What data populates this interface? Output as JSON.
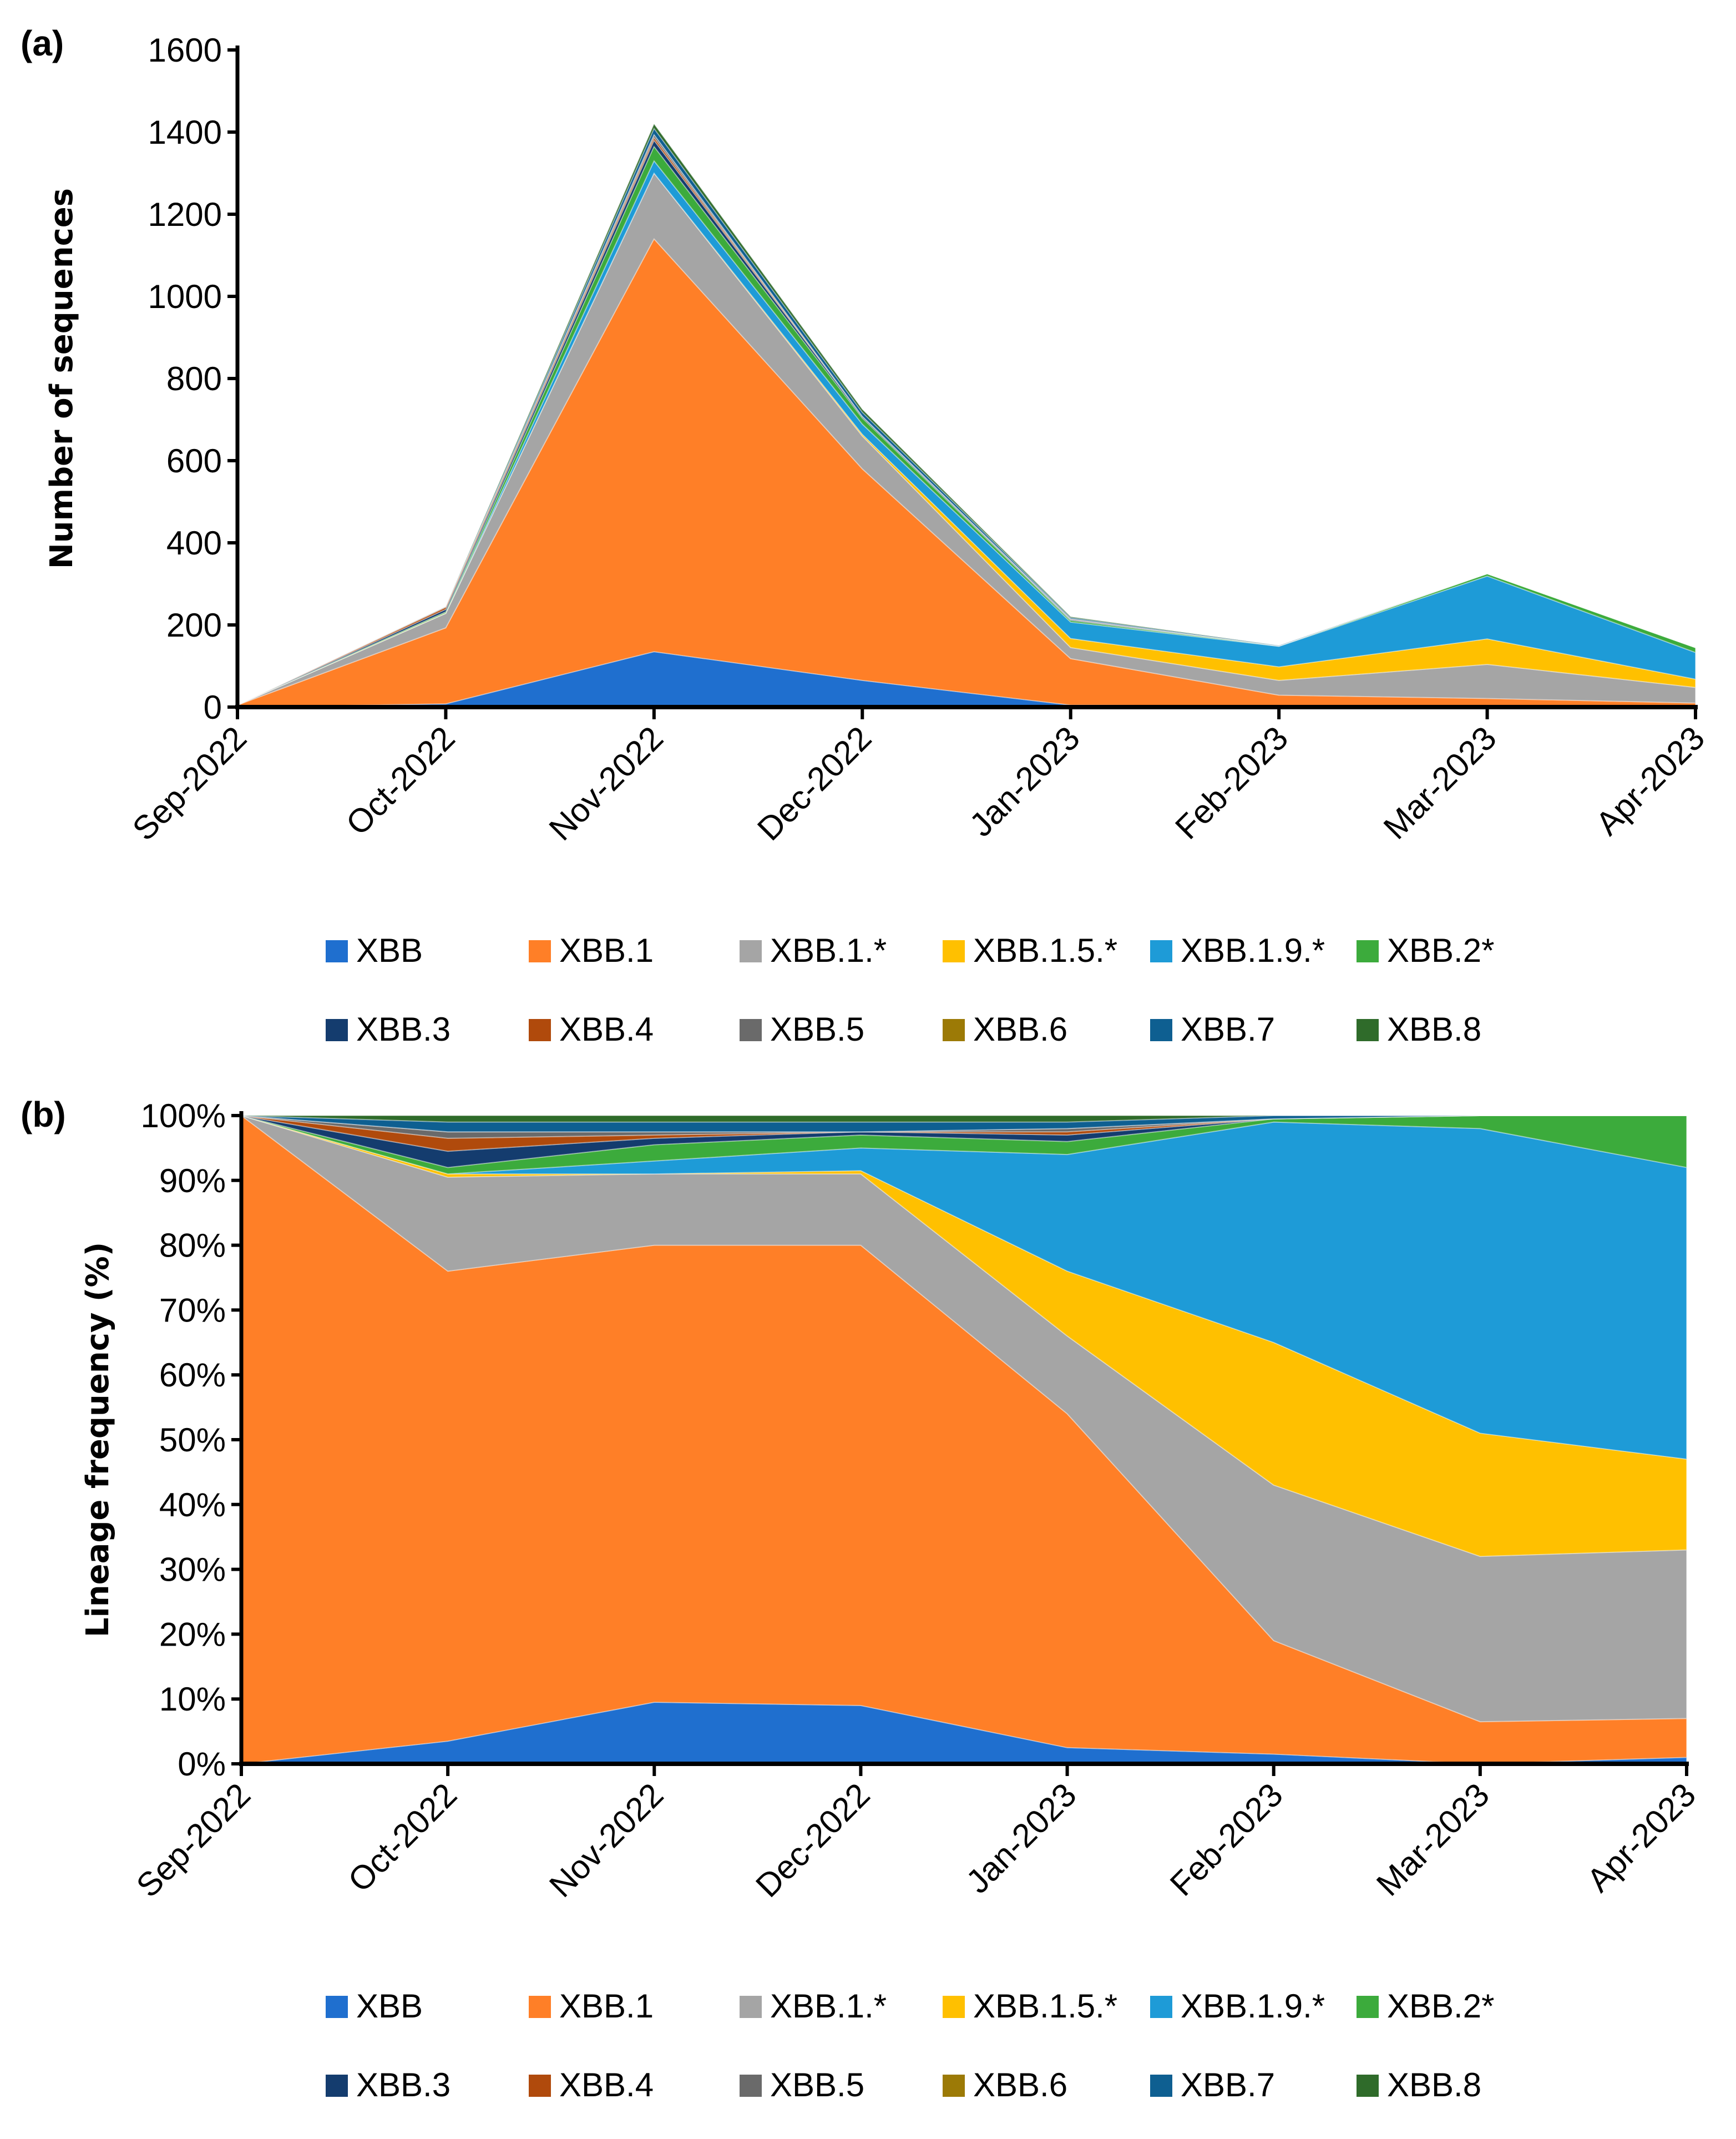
{
  "chart_data": [
    {
      "panel_label": "(a)",
      "type": "area",
      "stacked": true,
      "ylabel": "Number of sequences",
      "xlabel": "",
      "ylim": [
        0,
        1600
      ],
      "yticks": [
        "0",
        "200",
        "400",
        "600",
        "800",
        "1000",
        "1200",
        "1400",
        "1600"
      ],
      "ytick_values": [
        0,
        200,
        400,
        600,
        800,
        1000,
        1200,
        1400,
        1600
      ],
      "categories": [
        "Sep-2022",
        "Oct-2022",
        "Nov-2022",
        "Dec-2022",
        "Jan-2023",
        "Feb-2023",
        "Mar-2023",
        "Apr-2023"
      ],
      "grid": false,
      "legend_position": "bottom",
      "series": [
        {
          "name": "XBB",
          "color": "#1F6FCF",
          "values": [
            0,
            8,
            135,
            65,
            5,
            2,
            0,
            1
          ]
        },
        {
          "name": "XBB.1",
          "color": "#FF7F27",
          "values": [
            5,
            185,
            1005,
            515,
            113,
            27,
            21,
            9
          ]
        },
        {
          "name": "XBB.1.*",
          "color": "#A5A5A5",
          "values": [
            0,
            35,
            160,
            80,
            27,
            36,
            83,
            38
          ]
        },
        {
          "name": "XBB.1.5.*",
          "color": "#FFC000",
          "values": [
            0,
            1,
            0,
            4,
            22,
            33,
            62,
            20
          ]
        },
        {
          "name": "XBB.1.9.*",
          "color": "#1E9BD7",
          "values": [
            0,
            0,
            30,
            25,
            40,
            50,
            153,
            65
          ]
        },
        {
          "name": "XBB.2*",
          "color": "#3CAB3C",
          "values": [
            0,
            3,
            35,
            15,
            4,
            1,
            6,
            12
          ]
        },
        {
          "name": "XBB.3",
          "color": "#143C6E",
          "values": [
            0,
            6,
            15,
            4,
            2,
            0,
            0,
            0
          ]
        },
        {
          "name": "XBB.4",
          "color": "#B04A0C",
          "values": [
            0,
            5,
            7,
            0,
            1,
            0,
            0,
            0
          ]
        },
        {
          "name": "XBB.5",
          "color": "#6A6A6A",
          "values": [
            0,
            2,
            7,
            0,
            1,
            0,
            0,
            0
          ]
        },
        {
          "name": "XBB.6",
          "color": "#9C7A06",
          "values": [
            0,
            0,
            0,
            0,
            0,
            0,
            0,
            0
          ]
        },
        {
          "name": "XBB.7",
          "color": "#0E5F91",
          "values": [
            0,
            0,
            15,
            10,
            3,
            1,
            0,
            0
          ]
        },
        {
          "name": "XBB.8",
          "color": "#2F6B2A",
          "values": [
            0,
            0,
            11,
            7,
            2,
            0,
            0,
            0
          ]
        }
      ]
    },
    {
      "panel_label": "(b)",
      "type": "area",
      "stacked": true,
      "ylabel": "Lineage frequency (%)",
      "xlabel": "",
      "ylim": [
        0,
        100
      ],
      "yticks": [
        "0%",
        "10%",
        "20%",
        "30%",
        "40%",
        "50%",
        "60%",
        "70%",
        "80%",
        "90%",
        "100%"
      ],
      "ytick_values": [
        0,
        10,
        20,
        30,
        40,
        50,
        60,
        70,
        80,
        90,
        100
      ],
      "categories": [
        "Sep-2022",
        "Oct-2022",
        "Nov-2022",
        "Dec-2022",
        "Jan-2023",
        "Feb-2023",
        "Mar-2023",
        "Apr-2023"
      ],
      "grid": false,
      "legend_position": "bottom",
      "series": [
        {
          "name": "XBB",
          "color": "#1F6FCF",
          "values": [
            0,
            3.5,
            9.5,
            9,
            2.5,
            1.5,
            0,
            1
          ]
        },
        {
          "name": "XBB.1",
          "color": "#FF7F27",
          "values": [
            100,
            72.5,
            70.5,
            71,
            51.5,
            17.5,
            6.5,
            6
          ]
        },
        {
          "name": "XBB.1.*",
          "color": "#A5A5A5",
          "values": [
            0,
            14.5,
            11,
            11,
            12,
            24,
            25.5,
            26
          ]
        },
        {
          "name": "XBB.1.5.*",
          "color": "#FFC000",
          "values": [
            0,
            0.5,
            0,
            0.5,
            10,
            22,
            19,
            14
          ]
        },
        {
          "name": "XBB.1.9.*",
          "color": "#1E9BD7",
          "values": [
            0,
            0,
            2,
            3.5,
            18,
            34,
            47,
            45
          ]
        },
        {
          "name": "XBB.2*",
          "color": "#3CAB3C",
          "values": [
            0,
            1,
            2.5,
            2,
            2,
            0.5,
            2,
            8
          ]
        },
        {
          "name": "XBB.3",
          "color": "#143C6E",
          "values": [
            0,
            2.5,
            1,
            0.5,
            1,
            0,
            0,
            0
          ]
        },
        {
          "name": "XBB.4",
          "color": "#B04A0C",
          "values": [
            0,
            2,
            0.5,
            0,
            0.5,
            0,
            0,
            0
          ]
        },
        {
          "name": "XBB.5",
          "color": "#6A6A6A",
          "values": [
            0,
            1,
            0.5,
            0,
            0.5,
            0,
            0,
            0
          ]
        },
        {
          "name": "XBB.6",
          "color": "#9C7A06",
          "values": [
            0,
            0,
            0,
            0,
            0,
            0,
            0,
            0
          ]
        },
        {
          "name": "XBB.7",
          "color": "#0E5F91",
          "values": [
            0,
            1.5,
            1.5,
            1.5,
            1,
            0.5,
            0,
            0
          ]
        },
        {
          "name": "XBB.8",
          "color": "#2F6B2A",
          "values": [
            0,
            1,
            1,
            1,
            1,
            0,
            0,
            0
          ]
        }
      ]
    }
  ]
}
